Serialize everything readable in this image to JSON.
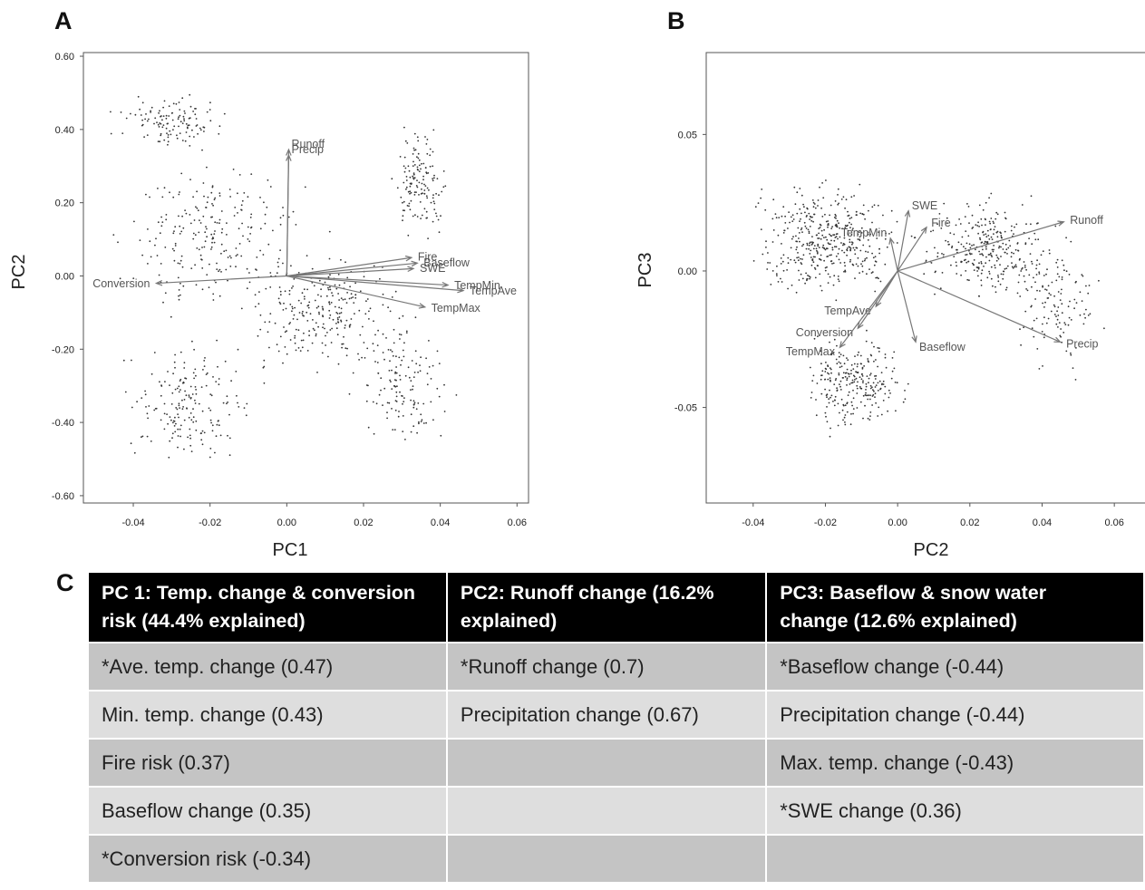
{
  "panels": {
    "a": "A",
    "b": "B",
    "c": "C"
  },
  "chart_data": [
    {
      "type": "scatter",
      "subtype": "biplot",
      "panel": "A",
      "xlabel": "PC1",
      "ylabel": "PC2",
      "xlim": [
        -0.053,
        0.063
      ],
      "ylim": [
        -0.62,
        0.61
      ],
      "xticks": [
        "-0.04",
        "-0.02",
        "0.00",
        "0.02",
        "0.04",
        "0.06"
      ],
      "yticks": [
        "0.60",
        "0.40",
        "0.20",
        "0.00",
        "-0.20",
        "-0.40",
        "-0.60"
      ],
      "grid": false,
      "vectors": [
        {
          "label": "Runoff",
          "x": 0.0005,
          "y": 0.345
        },
        {
          "label": "Precip",
          "x": 0.0005,
          "y": 0.33
        },
        {
          "label": "Conversion",
          "x": -0.034,
          "y": -0.02
        },
        {
          "label": "Fire",
          "x": 0.0325,
          "y": 0.05
        },
        {
          "label": "Baseflow",
          "x": 0.034,
          "y": 0.035
        },
        {
          "label": "SWE",
          "x": 0.033,
          "y": 0.02
        },
        {
          "label": "TempMin",
          "x": 0.042,
          "y": -0.025
        },
        {
          "label": "TempAve",
          "x": 0.046,
          "y": -0.04
        },
        {
          "label": "TempMax",
          "x": 0.036,
          "y": -0.085
        }
      ]
    },
    {
      "type": "scatter",
      "subtype": "biplot",
      "panel": "B",
      "xlabel": "PC2",
      "ylabel": "PC3",
      "xlim": [
        -0.053,
        0.07
      ],
      "ylim": [
        -0.085,
        0.08
      ],
      "xticks": [
        "-0.04",
        "-0.02",
        "0.00",
        "0.02",
        "0.04",
        "0.06"
      ],
      "yticks": [
        "0.05",
        "0.00",
        "-0.05"
      ],
      "grid": false,
      "vectors": [
        {
          "label": "Runoff",
          "x": 0.046,
          "y": 0.018
        },
        {
          "label": "Precip",
          "x": 0.045,
          "y": -0.026
        },
        {
          "label": "SWE",
          "x": 0.003,
          "y": 0.022
        },
        {
          "label": "Fire",
          "x": 0.008,
          "y": 0.016
        },
        {
          "label": "TempMin",
          "x": -0.002,
          "y": 0.012
        },
        {
          "label": "TempAve",
          "x": -0.006,
          "y": -0.013
        },
        {
          "label": "Conversion",
          "x": -0.011,
          "y": -0.021
        },
        {
          "label": "TempMax",
          "x": -0.016,
          "y": -0.028
        },
        {
          "label": "Baseflow",
          "x": 0.005,
          "y": -0.026
        }
      ]
    }
  ],
  "table": {
    "headers": [
      [
        "PC 1: Temp. change & conversion",
        "risk (44.4% explained)"
      ],
      [
        "PC2: Runoff change (16.2%",
        "explained)"
      ],
      [
        "PC3: Baseflow & snow water",
        "change (12.6% explained)"
      ]
    ],
    "rows": [
      [
        "*Ave. temp. change (0.47)",
        "*Runoff change (0.7)",
        "*Baseflow change (-0.44)"
      ],
      [
        "Min. temp. change (0.43)",
        "Precipitation change (0.67)",
        "Precipitation change (-0.44)"
      ],
      [
        "Fire risk (0.37)",
        "",
        "Max. temp. change (-0.43)"
      ],
      [
        "Baseflow change (0.35)",
        "",
        "*SWE change (0.36)"
      ],
      [
        "*Conversion risk (-0.34)",
        "",
        ""
      ]
    ]
  }
}
